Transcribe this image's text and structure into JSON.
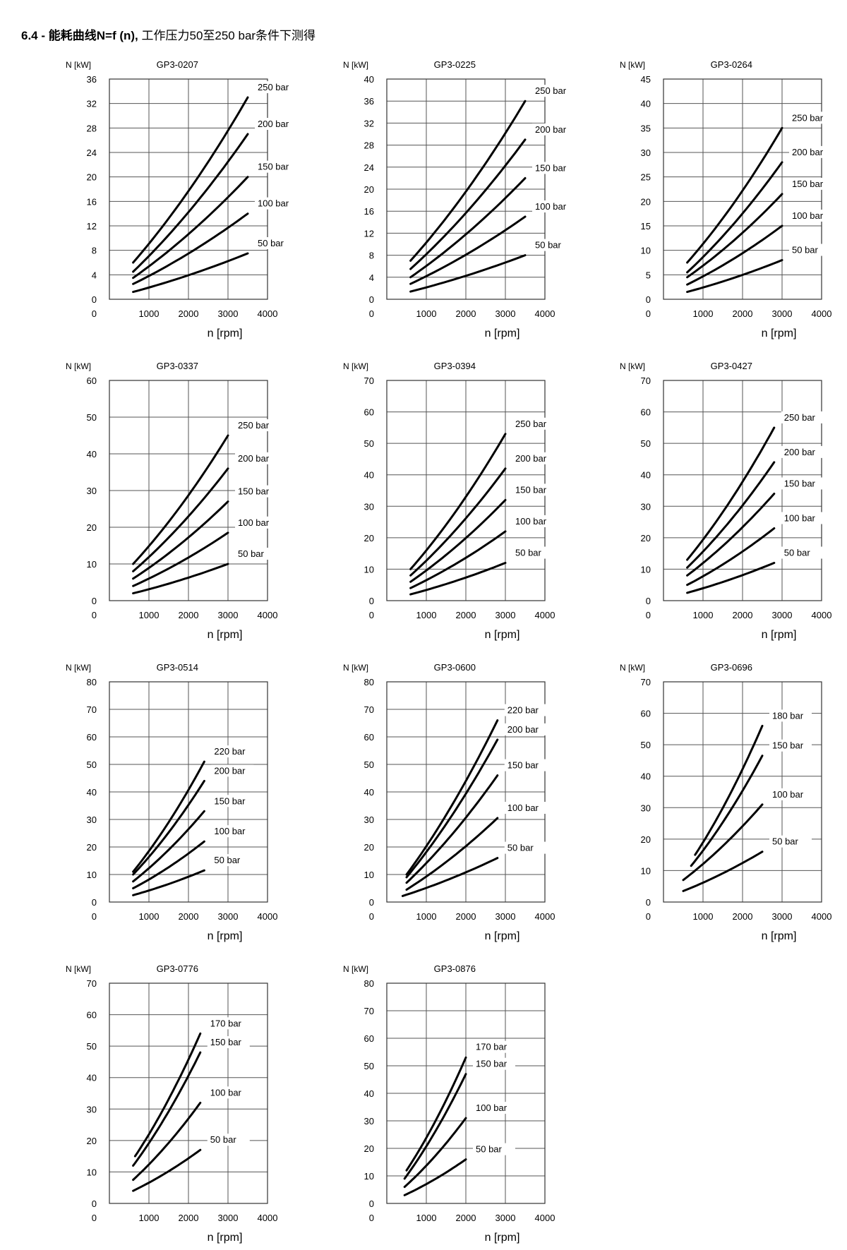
{
  "page": {
    "title_bold": "6.4 - 能耗曲线N=f (n),",
    "title_rest": " 工作压力50至250 bar条件下测得"
  },
  "chart_data": [
    {
      "type": "line",
      "title": "GP3-0207",
      "ylabel": "N [kW]",
      "xlabel": "n [rpm]",
      "xlim": [
        0,
        4000
      ],
      "ylim": [
        0,
        36
      ],
      "yticks": [
        0,
        4,
        8,
        12,
        16,
        20,
        24,
        28,
        32,
        36
      ],
      "xticks": [
        0,
        1000,
        2000,
        3000,
        4000
      ],
      "grid": true,
      "series": [
        {
          "name": "250 bar",
          "x": [
            600,
            3500
          ],
          "y": [
            6,
            33
          ]
        },
        {
          "name": "200 bar",
          "x": [
            600,
            3500
          ],
          "y": [
            4.5,
            27
          ]
        },
        {
          "name": "150 bar",
          "x": [
            600,
            3500
          ],
          "y": [
            3.5,
            20
          ]
        },
        {
          "name": "100 bar",
          "x": [
            600,
            3500
          ],
          "y": [
            2.5,
            14
          ]
        },
        {
          "name": "50 bar",
          "x": [
            600,
            3500
          ],
          "y": [
            1.2,
            7.5
          ]
        }
      ]
    },
    {
      "type": "line",
      "title": "GP3-0225",
      "ylabel": "N [kW]",
      "xlabel": "n [rpm]",
      "xlim": [
        0,
        4000
      ],
      "ylim": [
        0,
        40
      ],
      "yticks": [
        0,
        4,
        8,
        12,
        16,
        20,
        24,
        28,
        32,
        36,
        40
      ],
      "xticks": [
        0,
        1000,
        2000,
        3000,
        4000
      ],
      "grid": true,
      "series": [
        {
          "name": "250 bar",
          "x": [
            600,
            3500
          ],
          "y": [
            7,
            36
          ]
        },
        {
          "name": "200 bar",
          "x": [
            600,
            3500
          ],
          "y": [
            5.5,
            29
          ]
        },
        {
          "name": "150 bar",
          "x": [
            600,
            3500
          ],
          "y": [
            4,
            22
          ]
        },
        {
          "name": "100 bar",
          "x": [
            600,
            3500
          ],
          "y": [
            2.8,
            15
          ]
        },
        {
          "name": "50 bar",
          "x": [
            600,
            3500
          ],
          "y": [
            1.4,
            8
          ]
        }
      ]
    },
    {
      "type": "line",
      "title": "GP3-0264",
      "ylabel": "N [kW]",
      "xlabel": "n [rpm]",
      "xlim": [
        0,
        4000
      ],
      "ylim": [
        0,
        45
      ],
      "yticks": [
        0,
        5,
        10,
        15,
        20,
        25,
        30,
        35,
        40,
        45
      ],
      "xticks": [
        0,
        1000,
        2000,
        3000,
        4000
      ],
      "grid": true,
      "series": [
        {
          "name": "250 bar",
          "x": [
            600,
            3000
          ],
          "y": [
            7.5,
            35
          ]
        },
        {
          "name": "200 bar",
          "x": [
            600,
            3000
          ],
          "y": [
            5.5,
            28
          ]
        },
        {
          "name": "150 bar",
          "x": [
            600,
            3000
          ],
          "y": [
            4.5,
            21.5
          ]
        },
        {
          "name": "100 bar",
          "x": [
            600,
            3000
          ],
          "y": [
            3,
            15
          ]
        },
        {
          "name": "50 bar",
          "x": [
            600,
            3000
          ],
          "y": [
            1.5,
            8
          ]
        }
      ]
    },
    {
      "type": "line",
      "title": "GP3-0337",
      "ylabel": "N [kW]",
      "xlabel": "n [rpm]",
      "xlim": [
        0,
        4000
      ],
      "ylim": [
        0,
        60
      ],
      "yticks": [
        0,
        10,
        20,
        30,
        40,
        50,
        60
      ],
      "xticks": [
        0,
        1000,
        2000,
        3000,
        4000
      ],
      "grid": true,
      "series": [
        {
          "name": "250 bar",
          "x": [
            600,
            3000
          ],
          "y": [
            10,
            45
          ]
        },
        {
          "name": "200 bar",
          "x": [
            600,
            3000
          ],
          "y": [
            8,
            36
          ]
        },
        {
          "name": "150 bar",
          "x": [
            600,
            3000
          ],
          "y": [
            6,
            27
          ]
        },
        {
          "name": "100 bar",
          "x": [
            600,
            3000
          ],
          "y": [
            4,
            18.5
          ]
        },
        {
          "name": "50 bar",
          "x": [
            600,
            3000
          ],
          "y": [
            2,
            10
          ]
        }
      ]
    },
    {
      "type": "line",
      "title": "GP3-0394",
      "ylabel": "N [kW]",
      "xlabel": "n [rpm]",
      "xlim": [
        0,
        4000
      ],
      "ylim": [
        0,
        70
      ],
      "yticks": [
        0,
        10,
        20,
        30,
        40,
        50,
        60,
        70
      ],
      "xticks": [
        0,
        1000,
        2000,
        3000,
        4000
      ],
      "grid": true,
      "series": [
        {
          "name": "250 bar",
          "x": [
            600,
            3000
          ],
          "y": [
            10,
            53
          ]
        },
        {
          "name": "200 bar",
          "x": [
            600,
            3000
          ],
          "y": [
            8,
            42
          ]
        },
        {
          "name": "150 bar",
          "x": [
            600,
            3000
          ],
          "y": [
            6,
            32
          ]
        },
        {
          "name": "100 bar",
          "x": [
            600,
            3000
          ],
          "y": [
            4,
            22
          ]
        },
        {
          "name": "50 bar",
          "x": [
            600,
            3000
          ],
          "y": [
            2,
            12
          ]
        }
      ]
    },
    {
      "type": "line",
      "title": "GP3-0427",
      "ylabel": "N [kW]",
      "xlabel": "n [rpm]",
      "xlim": [
        0,
        4000
      ],
      "ylim": [
        0,
        70
      ],
      "yticks": [
        0,
        10,
        20,
        30,
        40,
        50,
        60,
        70
      ],
      "xticks": [
        0,
        1000,
        2000,
        3000,
        4000
      ],
      "grid": true,
      "series": [
        {
          "name": "250 bar",
          "x": [
            600,
            2800
          ],
          "y": [
            13,
            55
          ]
        },
        {
          "name": "200 bar",
          "x": [
            600,
            2800
          ],
          "y": [
            10.5,
            44
          ]
        },
        {
          "name": "150 bar",
          "x": [
            600,
            2800
          ],
          "y": [
            8,
            34
          ]
        },
        {
          "name": "100 bar",
          "x": [
            600,
            2800
          ],
          "y": [
            5,
            23
          ]
        },
        {
          "name": "50 bar",
          "x": [
            600,
            2800
          ],
          "y": [
            2.5,
            12
          ]
        }
      ]
    },
    {
      "type": "line",
      "title": "GP3-0514",
      "ylabel": "N [kW]",
      "xlabel": "n [rpm]",
      "xlim": [
        0,
        4000
      ],
      "ylim": [
        0,
        80
      ],
      "yticks": [
        0,
        10,
        20,
        30,
        40,
        50,
        60,
        70,
        80
      ],
      "xticks": [
        0,
        1000,
        2000,
        3000,
        4000
      ],
      "grid": true,
      "series": [
        {
          "name": "220 bar",
          "x": [
            600,
            2400
          ],
          "y": [
            11,
            51
          ]
        },
        {
          "name": "200 bar",
          "x": [
            600,
            2400
          ],
          "y": [
            10,
            44
          ]
        },
        {
          "name": "150 bar",
          "x": [
            600,
            2400
          ],
          "y": [
            7.5,
            33
          ]
        },
        {
          "name": "100 bar",
          "x": [
            600,
            2400
          ],
          "y": [
            5,
            22
          ]
        },
        {
          "name": "50 bar",
          "x": [
            600,
            2400
          ],
          "y": [
            2.5,
            11.5
          ]
        }
      ]
    },
    {
      "type": "line",
      "title": "GP3-0600",
      "ylabel": "N [kW]",
      "xlabel": "n [rpm]",
      "xlim": [
        0,
        4000
      ],
      "ylim": [
        0,
        80
      ],
      "yticks": [
        0,
        10,
        20,
        30,
        40,
        50,
        60,
        70,
        80
      ],
      "xticks": [
        0,
        1000,
        2000,
        3000,
        4000
      ],
      "grid": true,
      "series": [
        {
          "name": "220 bar",
          "x": [
            500,
            2800
          ],
          "y": [
            10,
            66
          ]
        },
        {
          "name": "200 bar",
          "x": [
            500,
            2800
          ],
          "y": [
            9,
            59
          ]
        },
        {
          "name": "150 bar",
          "x": [
            500,
            2800
          ],
          "y": [
            7,
            46
          ]
        },
        {
          "name": "100 bar",
          "x": [
            500,
            2800
          ],
          "y": [
            4.5,
            30.5
          ]
        },
        {
          "name": "50 bar",
          "x": [
            400,
            2800
          ],
          "y": [
            2.2,
            16
          ]
        }
      ]
    },
    {
      "type": "line",
      "title": "GP3-0696",
      "ylabel": "N [kW]",
      "xlabel": "n [rpm]",
      "xlim": [
        0,
        4000
      ],
      "ylim": [
        0,
        70
      ],
      "yticks": [
        0,
        10,
        20,
        30,
        40,
        50,
        60,
        70
      ],
      "xticks": [
        0,
        1000,
        2000,
        3000,
        4000
      ],
      "grid": true,
      "series": [
        {
          "name": "180 bar",
          "x": [
            800,
            2500
          ],
          "y": [
            15,
            56
          ]
        },
        {
          "name": "150 bar",
          "x": [
            700,
            2500
          ],
          "y": [
            11.5,
            46.5
          ]
        },
        {
          "name": "100 bar",
          "x": [
            500,
            2500
          ],
          "y": [
            7,
            31
          ]
        },
        {
          "name": "50 bar",
          "x": [
            500,
            2500
          ],
          "y": [
            3.5,
            16
          ]
        }
      ]
    },
    {
      "type": "line",
      "title": "GP3-0776",
      "ylabel": "N [kW]",
      "xlabel": "n [rpm]",
      "xlim": [
        0,
        4000
      ],
      "ylim": [
        0,
        70
      ],
      "yticks": [
        0,
        10,
        20,
        30,
        40,
        50,
        60,
        70
      ],
      "xticks": [
        0,
        1000,
        2000,
        3000,
        4000
      ],
      "grid": true,
      "series": [
        {
          "name": "170 bar",
          "x": [
            650,
            2300
          ],
          "y": [
            15,
            54
          ]
        },
        {
          "name": "150 bar",
          "x": [
            600,
            2300
          ],
          "y": [
            12,
            48
          ]
        },
        {
          "name": "100 bar",
          "x": [
            600,
            2300
          ],
          "y": [
            7.5,
            32
          ]
        },
        {
          "name": "50 bar",
          "x": [
            600,
            2300
          ],
          "y": [
            4,
            17
          ]
        }
      ]
    },
    {
      "type": "line",
      "title": "GP3-0876",
      "ylabel": "N [kW]",
      "xlabel": "n [rpm]",
      "xlim": [
        0,
        4000
      ],
      "ylim": [
        0,
        80
      ],
      "yticks": [
        0,
        10,
        20,
        30,
        40,
        50,
        60,
        70,
        80
      ],
      "xticks": [
        0,
        1000,
        2000,
        3000,
        4000
      ],
      "grid": true,
      "series": [
        {
          "name": "170 bar",
          "x": [
            500,
            2000
          ],
          "y": [
            12,
            53
          ]
        },
        {
          "name": "150 bar",
          "x": [
            450,
            2000
          ],
          "y": [
            9,
            47
          ]
        },
        {
          "name": "100 bar",
          "x": [
            450,
            2000
          ],
          "y": [
            6,
            31
          ]
        },
        {
          "name": "50 bar",
          "x": [
            450,
            2000
          ],
          "y": [
            3,
            16
          ]
        }
      ]
    }
  ]
}
